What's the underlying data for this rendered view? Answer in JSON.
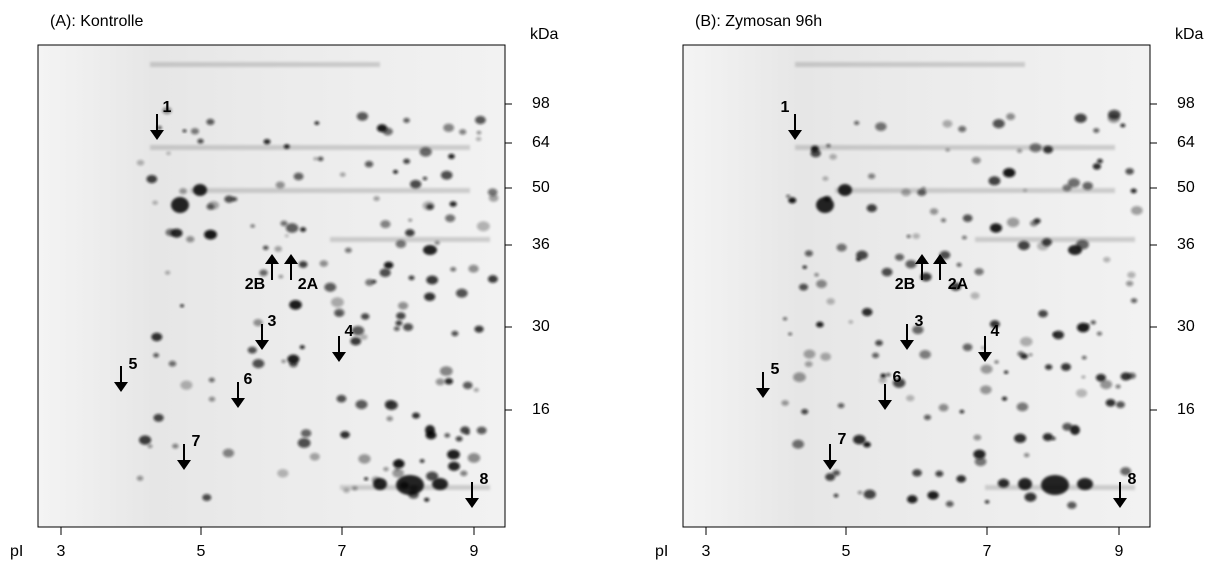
{
  "panels": [
    {
      "title": "(A): Kontrolle",
      "y_unit": "kDa",
      "y_labels": [
        "98",
        "64",
        "50",
        "36",
        "30",
        "16"
      ],
      "x_unit": "pI",
      "x_labels": [
        "3",
        "5",
        "7",
        "9"
      ],
      "markers": [
        "1",
        "2B",
        "2A",
        "3",
        "4",
        "5",
        "6",
        "7",
        "8"
      ]
    },
    {
      "title": "(B): Zymosan 96h",
      "y_unit": "kDa",
      "y_labels": [
        "98",
        "64",
        "50",
        "36",
        "30",
        "16"
      ],
      "x_unit": "pI",
      "x_labels": [
        "3",
        "5",
        "7",
        "9"
      ],
      "markers": [
        "1",
        "2B",
        "2A",
        "3",
        "4",
        "5",
        "6",
        "7",
        "8"
      ]
    }
  ]
}
